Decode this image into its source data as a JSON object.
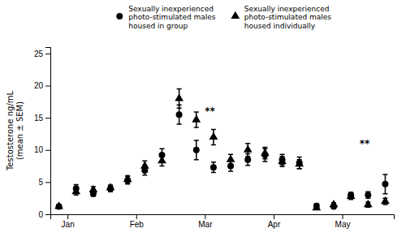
{
  "chart_data": {
    "type": "scatter",
    "ylabel": "Testosterone ng/mL\n(mean ± SEM)",
    "xlim": [
      0.5,
      20.5
    ],
    "xticks": [
      {
        "value": 1.5,
        "label": "Jan"
      },
      {
        "value": 5.5,
        "label": "Feb"
      },
      {
        "value": 9.5,
        "label": "Mar"
      },
      {
        "value": 13.5,
        "label": "Apr"
      },
      {
        "value": 17.5,
        "label": "May"
      }
    ],
    "ylim": [
      0,
      26
    ],
    "yticks": [
      0,
      5,
      10,
      15,
      20,
      25
    ],
    "legend": "top",
    "series": [
      {
        "name": "Sexually inexperienced\nphoto-stimulated males\nhoused in group",
        "color": "black",
        "marker": "circle",
        "x": [
          1,
          2,
          3,
          4,
          5,
          6,
          7,
          8,
          9,
          10,
          11,
          12,
          13,
          14,
          15,
          16,
          17,
          18,
          19,
          20
        ],
        "values": [
          1.2,
          4.0,
          3.2,
          4.0,
          5.3,
          6.8,
          9.2,
          15.5,
          10.0,
          7.3,
          7.5,
          8.5,
          9.2,
          8.5,
          8.0,
          1.3,
          1.2,
          3.0,
          3.0,
          4.7
        ],
        "yerr": [
          0.3,
          0.6,
          0.4,
          0.5,
          0.6,
          0.7,
          1.0,
          1.5,
          1.5,
          0.8,
          0.8,
          0.9,
          1.0,
          0.8,
          0.9,
          0.3,
          0.2,
          0.4,
          0.5,
          1.5
        ]
      },
      {
        "name": "Sexually inexperienced\nphoto-stimulated males\nhoused individually",
        "color": "black",
        "marker": "triangle",
        "x": [
          1,
          2,
          3,
          4,
          5,
          6,
          7,
          8,
          9,
          10,
          11,
          12,
          13,
          14,
          15,
          16,
          17,
          18,
          19,
          20
        ],
        "values": [
          1.2,
          3.5,
          3.8,
          4.1,
          5.4,
          7.5,
          8.3,
          18.0,
          14.7,
          12.0,
          8.5,
          10.0,
          9.5,
          8.2,
          7.8,
          1.0,
          1.5,
          2.8,
          1.5,
          2.0
        ],
        "yerr": [
          0.3,
          0.5,
          0.5,
          0.4,
          0.6,
          0.8,
          0.8,
          1.5,
          1.2,
          1.2,
          0.8,
          1.0,
          0.9,
          0.8,
          0.7,
          0.2,
          0.3,
          0.5,
          0.4,
          0.5
        ]
      }
    ],
    "annotations": [
      {
        "text": "**",
        "x": 9.5,
        "y": 15.5
      },
      {
        "text": "**",
        "x": 18.5,
        "y": 10.5
      }
    ]
  }
}
